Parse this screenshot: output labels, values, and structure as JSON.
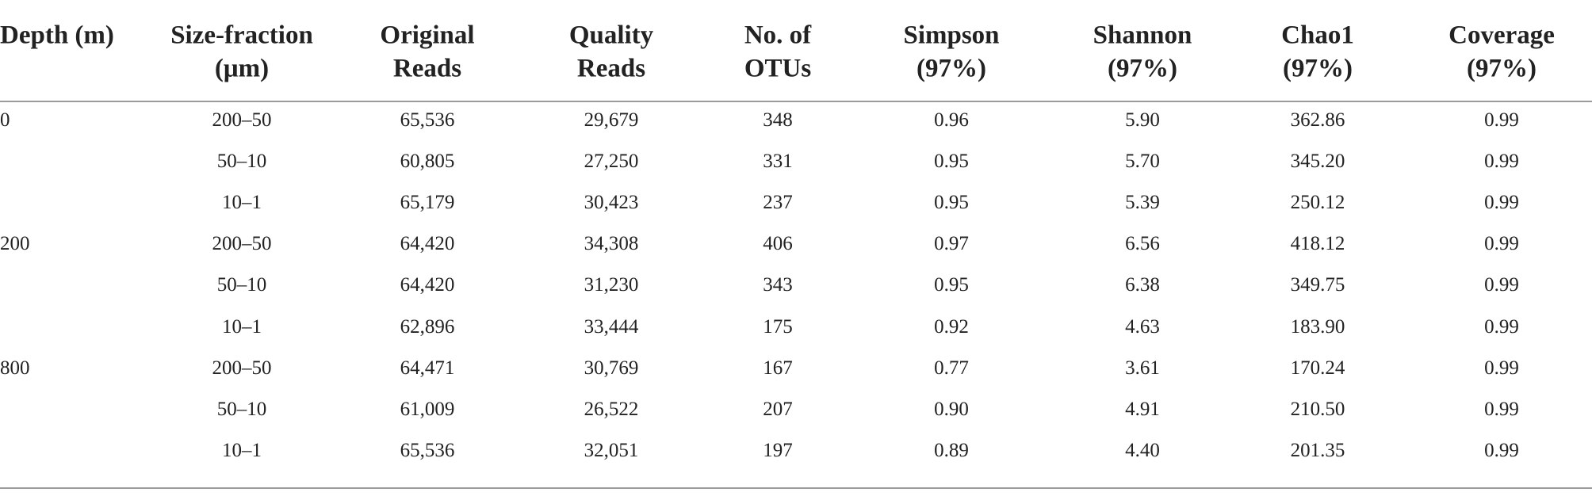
{
  "table": {
    "header": [
      [
        "Depth (m)"
      ],
      [
        "Size-fraction",
        "(μm)"
      ],
      [
        "Original",
        "Reads"
      ],
      [
        "Quality",
        "Reads"
      ],
      [
        "No. of",
        "OTUs"
      ],
      [
        "Simpson",
        "(97%)"
      ],
      [
        "Shannon",
        "(97%)"
      ],
      [
        "Chao1",
        "(97%)"
      ],
      [
        "Coverage",
        "(97%)"
      ]
    ],
    "groups": [
      {
        "depth": "0",
        "rows": [
          [
            "200–50",
            "65,536",
            "29,679",
            "348",
            "0.96",
            "5.90",
            "362.86",
            "0.99"
          ],
          [
            "50–10",
            "60,805",
            "27,250",
            "331",
            "0.95",
            "5.70",
            "345.20",
            "0.99"
          ],
          [
            "10–1",
            "65,179",
            "30,423",
            "237",
            "0.95",
            "5.39",
            "250.12",
            "0.99"
          ]
        ]
      },
      {
        "depth": "200",
        "rows": [
          [
            "200–50",
            "64,420",
            "34,308",
            "406",
            "0.97",
            "6.56",
            "418.12",
            "0.99"
          ],
          [
            "50–10",
            "64,420",
            "31,230",
            "343",
            "0.95",
            "6.38",
            "349.75",
            "0.99"
          ],
          [
            "10–1",
            "62,896",
            "33,444",
            "175",
            "0.92",
            "4.63",
            "183.90",
            "0.99"
          ]
        ]
      },
      {
        "depth": "800",
        "rows": [
          [
            "200–50",
            "64,471",
            "30,769",
            "167",
            "0.77",
            "3.61",
            "170.24",
            "0.99"
          ],
          [
            "50–10",
            "61,009",
            "26,522",
            "207",
            "0.90",
            "4.91",
            "210.50",
            "0.99"
          ],
          [
            "10–1",
            "65,536",
            "32,051",
            "197",
            "0.89",
            "4.40",
            "201.35",
            "0.99"
          ]
        ]
      }
    ]
  }
}
